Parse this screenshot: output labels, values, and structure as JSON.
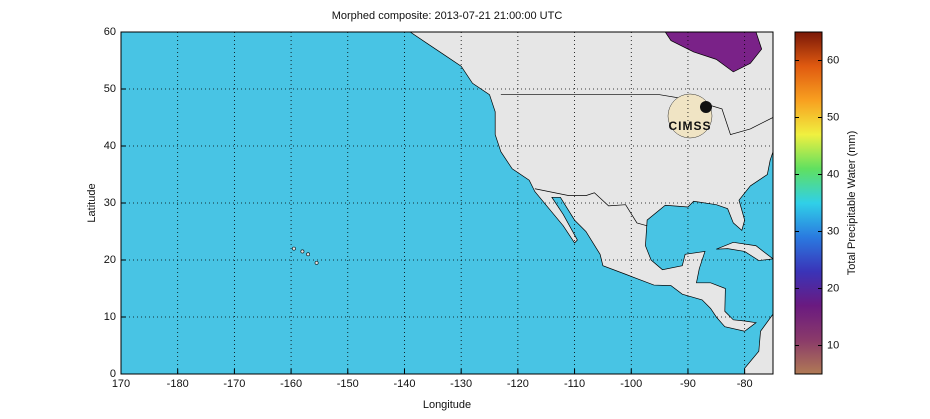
{
  "chart_data": {
    "type": "heatmap",
    "title": "Morphed composite: 2013-07-21 21:00:00 UTC",
    "x_label": "Longitude",
    "y_label": "Latitude",
    "xlim": [
      -190,
      -75
    ],
    "xticks": [
      {
        "value": -190,
        "label": "170"
      },
      -180,
      -170,
      -160,
      -150,
      -140,
      -130,
      -120,
      -110,
      -100,
      -90,
      -80
    ],
    "ylim": [
      0,
      60
    ],
    "yticks": [
      0,
      10,
      20,
      30,
      40,
      50,
      60
    ],
    "grid": true,
    "colorbar": {
      "label": "Total Precipitable Water (mm)",
      "lim": [
        5,
        65
      ],
      "ticks": [
        10,
        20,
        30,
        40,
        50,
        60
      ],
      "colormap": [
        "#b07a55",
        "#8a3a6a",
        "#6a1a80",
        "#3a34b8",
        "#2a7ae0",
        "#30d0e8",
        "#60e060",
        "#f0f040",
        "#f8a020",
        "#e05a10",
        "#7a1808"
      ]
    }
  },
  "logo_text": "CIMSS"
}
